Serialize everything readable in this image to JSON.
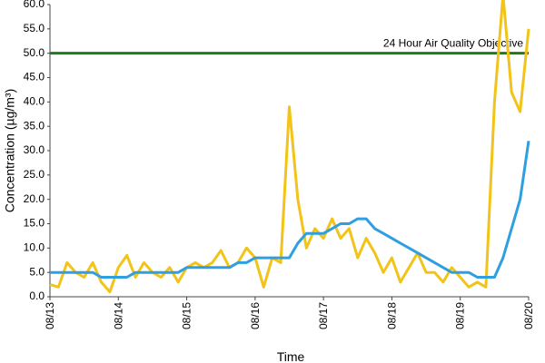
{
  "chart_data": {
    "type": "line",
    "xlabel": "Time",
    "ylabel": "Concentration (µg/m³)",
    "categories": [
      "08/13",
      null,
      null,
      null,
      null,
      null,
      null,
      null,
      "08/14",
      null,
      null,
      null,
      null,
      null,
      null,
      null,
      "08/15",
      null,
      null,
      null,
      null,
      null,
      null,
      null,
      "08/16",
      null,
      null,
      null,
      null,
      null,
      null,
      null,
      "08/17",
      null,
      null,
      null,
      null,
      null,
      null,
      null,
      "08/18",
      null,
      null,
      null,
      null,
      null,
      null,
      null,
      "08/19",
      null,
      null,
      null,
      null,
      null,
      null,
      null,
      "08/20"
    ],
    "series": [
      {
        "color": "#f2c318",
        "values": [
          2.5,
          2,
          7,
          5,
          4,
          7,
          3,
          1,
          6,
          8.5,
          4,
          7,
          5,
          4,
          6,
          3,
          6,
          7,
          6,
          7,
          9.5,
          6,
          7,
          10,
          8,
          2,
          8,
          7,
          39,
          20,
          10,
          14,
          12,
          16,
          12,
          14,
          8,
          12,
          9,
          5,
          8,
          3,
          6,
          9,
          5,
          5,
          3,
          6,
          4,
          2,
          3,
          2,
          40,
          62,
          42,
          38,
          55
        ]
      },
      {
        "color": "#2e9fe0",
        "values": [
          5,
          5,
          5,
          5,
          5,
          5,
          4,
          4,
          4,
          4,
          5,
          5,
          5,
          5,
          5,
          5,
          6,
          6,
          6,
          6,
          6,
          6,
          7,
          7,
          8,
          8,
          8,
          8,
          8,
          11,
          13,
          13,
          13,
          14,
          15,
          15,
          16,
          16,
          14,
          13,
          12,
          11,
          10,
          9,
          8,
          7,
          6,
          5,
          5,
          5,
          4,
          4,
          4,
          8,
          14,
          20,
          32
        ]
      }
    ],
    "annotation": {
      "text": "24 Hour Air Quality Objective",
      "value": 50,
      "color": "#1e7a1e"
    },
    "ylim": [
      0,
      60
    ],
    "yticks": [
      {
        "value": 0,
        "label": "0.0"
      },
      {
        "value": 5,
        "label": "5.0"
      },
      {
        "value": 10,
        "label": "10.0"
      },
      {
        "value": 15,
        "label": "15.0"
      },
      {
        "value": 20,
        "label": "20.0"
      },
      {
        "value": 25,
        "label": "25.0"
      },
      {
        "value": 30,
        "label": "30.0"
      },
      {
        "value": 35,
        "label": "35.0"
      },
      {
        "value": 40,
        "label": "40.0"
      },
      {
        "value": 45,
        "label": "45.0"
      },
      {
        "value": 50,
        "label": "50.0"
      },
      {
        "value": 55,
        "label": "55.0"
      },
      {
        "value": 60,
        "label": "60.0"
      }
    ]
  }
}
